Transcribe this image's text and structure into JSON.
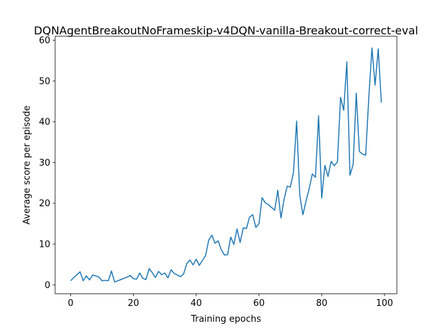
{
  "chart_data": {
    "type": "line",
    "title": "DQNAgentBreakoutNoFrameskip-v4DQN-vanilla-Breakout-correct-eval",
    "x_label": "Training epochs",
    "y_label": "Average score per episode",
    "x": [
      0,
      1,
      2,
      3,
      4,
      5,
      6,
      7,
      8,
      9,
      10,
      11,
      12,
      13,
      14,
      15,
      16,
      17,
      18,
      19,
      20,
      21,
      22,
      23,
      24,
      25,
      26,
      27,
      28,
      29,
      30,
      31,
      32,
      33,
      34,
      35,
      36,
      37,
      38,
      39,
      40,
      41,
      42,
      43,
      44,
      45,
      46,
      47,
      48,
      49,
      50,
      51,
      52,
      53,
      54,
      55,
      56,
      57,
      58,
      59,
      60,
      61,
      62,
      63,
      64,
      65,
      66,
      67,
      68,
      69,
      70,
      71,
      72,
      73,
      74,
      75,
      76,
      77,
      78,
      79,
      80,
      81,
      82,
      83,
      84,
      85,
      86,
      87,
      88,
      89,
      90,
      91,
      92,
      93,
      94,
      95,
      96,
      97,
      98,
      99
    ],
    "series": [
      {
        "color": "#1f77b4",
        "values": [
          1.0,
          1.8,
          2.5,
          3.2,
          1.0,
          2.2,
          1.2,
          2.4,
          2.2,
          1.9,
          1.0,
          1.1,
          1.0,
          3.4,
          0.7,
          1.0,
          1.3,
          1.6,
          1.9,
          2.3,
          1.5,
          1.4,
          2.9,
          1.6,
          1.3,
          4.0,
          3.0,
          1.8,
          3.3,
          2.5,
          2.9,
          1.7,
          3.7,
          2.8,
          2.4,
          2.0,
          2.7,
          5.2,
          6.1,
          4.9,
          6.3,
          4.8,
          6.0,
          7.2,
          11.0,
          12.2,
          10.2,
          10.8,
          8.6,
          7.3,
          7.4,
          11.7,
          9.9,
          13.7,
          10.4,
          14.0,
          13.8,
          16.6,
          17.2,
          14.1,
          15.0,
          21.4,
          20.1,
          19.7,
          19.0,
          18.3,
          23.2,
          16.4,
          21.0,
          24.2,
          24.0,
          27.6,
          40.2,
          22.0,
          17.2,
          20.6,
          23.6,
          27.2,
          26.4,
          41.5,
          21.3,
          29.3,
          26.6,
          30.3,
          29.2,
          30.2,
          46.0,
          42.8,
          54.7,
          26.9,
          29.5,
          47.0,
          32.7,
          32.1,
          31.8,
          46.0,
          58.1,
          49.0,
          57.9,
          44.7
        ]
      }
    ],
    "xlim": [
      -4.95,
      103.95
    ],
    "ylim": [
      -2.17,
      60.97
    ],
    "xticks": [
      0,
      20,
      40,
      60,
      80,
      100
    ],
    "yticks": [
      0,
      10,
      20,
      30,
      40,
      50,
      60
    ],
    "grid": false
  }
}
